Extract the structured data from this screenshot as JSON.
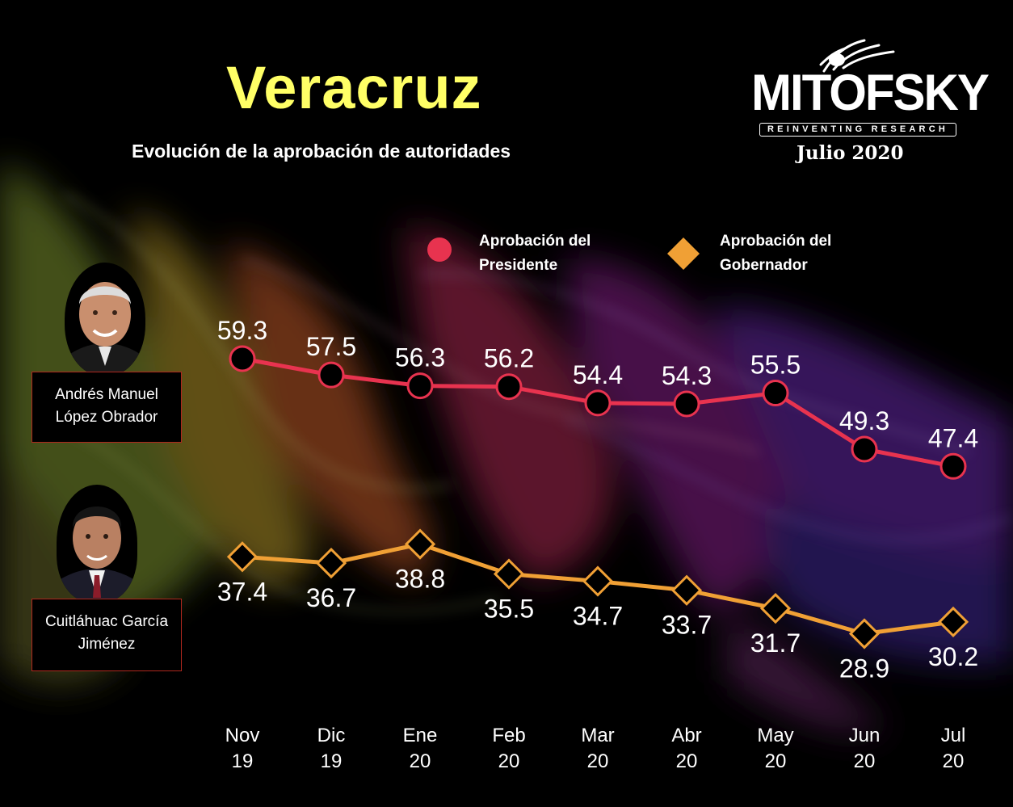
{
  "header": {
    "title": "Veracruz",
    "subtitle": "Evolución de la aprobación de autoridades"
  },
  "logo": {
    "wordmark": "MITOFSKY",
    "tagline": "REINVENTING RESEARCH",
    "date": "Julio 2020"
  },
  "people": [
    {
      "name": "Andrés Manuel López Obrador",
      "line1": "Andrés Manuel",
      "line2": "López Obrador"
    },
    {
      "name": "Cuitláhuac García Jiménez",
      "line1": "Cuitláhuac García",
      "line2": "Jiménez"
    }
  ],
  "colors": {
    "president": "#e8334f",
    "governor": "#f0a035",
    "title": "#ffff66"
  },
  "chart_data": {
    "type": "line",
    "title": "Evolución de la aprobación de autoridades",
    "categories": [
      {
        "month": "Nov",
        "year": "19"
      },
      {
        "month": "Dic",
        "year": "19"
      },
      {
        "month": "Ene",
        "year": "20"
      },
      {
        "month": "Feb",
        "year": "20"
      },
      {
        "month": "Mar",
        "year": "20"
      },
      {
        "month": "Abr",
        "year": "20"
      },
      {
        "month": "May",
        "year": "20"
      },
      {
        "month": "Jun",
        "year": "20"
      },
      {
        "month": "Jul",
        "year": "20"
      }
    ],
    "series": [
      {
        "name": "Aprobación del Presidente",
        "legend_line1": "Aprobación del",
        "legend_line2": "Presidente",
        "marker": "circle",
        "values": [
          59.3,
          57.5,
          56.3,
          56.2,
          54.4,
          54.3,
          55.5,
          49.3,
          47.4
        ],
        "labels": [
          "59.3",
          "57.5",
          "56.3",
          "56.2",
          "54.4",
          "54.3",
          "55.5",
          "49.3",
          "47.4"
        ]
      },
      {
        "name": "Aprobación del Gobernador",
        "legend_line1": "Aprobación del",
        "legend_line2": "Gobernador",
        "marker": "diamond",
        "values": [
          37.4,
          36.7,
          38.8,
          35.5,
          34.7,
          33.7,
          31.7,
          28.9,
          30.2
        ],
        "labels": [
          "37.4",
          "36.7",
          "38.8",
          "35.5",
          "34.7",
          "33.7",
          "31.7",
          "28.9",
          "30.2"
        ]
      }
    ],
    "legend": "top",
    "grid": false,
    "ylim": [
      20,
      70
    ]
  }
}
